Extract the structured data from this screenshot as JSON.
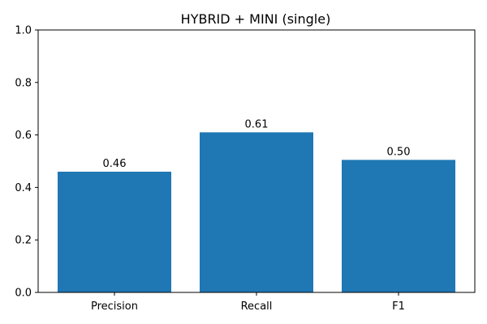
{
  "chart_data": {
    "type": "bar",
    "title": "HYBRID + MINI (single)",
    "categories": [
      "Precision",
      "Recall",
      "F1"
    ],
    "values": [
      0.46,
      0.61,
      0.505
    ],
    "data_labels": [
      "0.46",
      "0.61",
      "0.50"
    ],
    "xlabel": "",
    "ylabel": "",
    "ylim": [
      0,
      1.0
    ],
    "yticks": [
      0.0,
      0.2,
      0.4,
      0.6,
      0.8,
      1.0
    ],
    "ytick_labels": [
      "0.0",
      "0.2",
      "0.4",
      "0.6",
      "0.8",
      "1.0"
    ],
    "grid": false,
    "bar_color": "#1f77b4"
  }
}
